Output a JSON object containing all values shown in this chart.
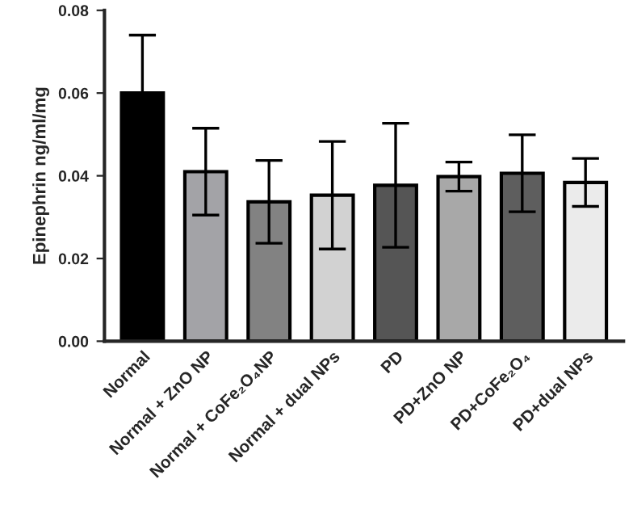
{
  "chart_data": {
    "type": "bar",
    "ylabel": "Epinephrin ng/ml/mg",
    "categories": [
      "Normal",
      "Normal + ZnO NP",
      "Normal + CoFe₂O₄NP",
      "Normal + dual NPs",
      "PD",
      "PD+ZnO NP",
      "PD+CoFe₂O₄",
      "PD+dual NPs"
    ],
    "values": [
      0.06,
      0.041,
      0.0337,
      0.0353,
      0.0377,
      0.0398,
      0.0406,
      0.0384
    ],
    "errors": [
      0.014,
      0.0105,
      0.01,
      0.013,
      0.015,
      0.0035,
      0.0093,
      0.0058
    ],
    "colors": [
      "#000000",
      "#a3a3a7",
      "#828282",
      "#d2d2d2",
      "#555555",
      "#a8a8a8",
      "#5e5e5e",
      "#ebebeb"
    ],
    "ylim": [
      0,
      0.08
    ],
    "yticks": [
      {
        "value": 0,
        "label": "0.00"
      },
      {
        "value": 0.02,
        "label": "0.02"
      },
      {
        "value": 0.04,
        "label": "0.04"
      },
      {
        "value": 0.06,
        "label": "0.06"
      },
      {
        "value": 0.08,
        "label": "0.08"
      }
    ],
    "grid": false,
    "legend": false
  }
}
